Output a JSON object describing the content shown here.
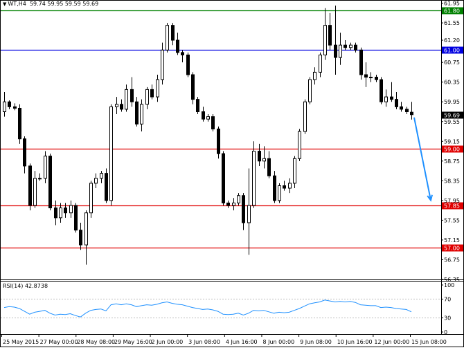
{
  "header": {
    "symbol": "WT,H4",
    "ohlc": "59.74 59.95 59.59 59.69"
  },
  "colors": {
    "bull_candle": "#ffffff",
    "bear_candle": "#000000",
    "candle_outline": "#000000",
    "support_line": "#e00000",
    "resistance_green": "#008000",
    "resistance_blue": "#0000e0",
    "rsi_line": "#1e90ff",
    "projection_arrow": "#1e90ff",
    "price_label_bg": "#000000",
    "grid": "#c0c0c0"
  },
  "chart_data": {
    "type": "candlestick",
    "title": "",
    "price_axis": {
      "ylim": [
        56.35,
        62.0
      ],
      "ticks": [
        61.95,
        61.55,
        61.2,
        60.75,
        60.35,
        59.95,
        59.55,
        59.15,
        58.75,
        58.35,
        57.95,
        57.55,
        57.15,
        56.75,
        56.35
      ]
    },
    "time_axis_labels": [
      "25 May 2015",
      "27 May 00:00",
      "28 May 08:00",
      "29 May 16:00",
      "2 Jun 00:00",
      "3 Jun 08:00",
      "4 Jun 16:00",
      "8 Jun 00:00",
      "9 Jun 08:00",
      "10 Jun 16:00",
      "12 Jun 00:00",
      "15 Jun 08:00"
    ],
    "horizontal_levels": [
      {
        "price": 61.8,
        "label": "61.80",
        "color": "#008000"
      },
      {
        "price": 61.0,
        "label": "61.00",
        "color": "#0000e0"
      },
      {
        "price": 59.0,
        "label": "59.00",
        "color": "#e00000"
      },
      {
        "price": 57.85,
        "label": "57.85",
        "color": "#e00000"
      },
      {
        "price": 57.0,
        "label": "57.00",
        "color": "#e00000"
      }
    ],
    "current_price": {
      "price": 59.69,
      "label": "59.69"
    },
    "candles": [
      [
        59.75,
        60.15,
        59.65,
        59.95
      ],
      [
        59.95,
        59.98,
        59.8,
        59.85
      ],
      [
        59.85,
        59.92,
        59.78,
        59.82
      ],
      [
        59.82,
        59.9,
        59.1,
        59.2
      ],
      [
        59.2,
        59.25,
        58.5,
        58.65
      ],
      [
        58.65,
        58.7,
        57.75,
        57.85
      ],
      [
        57.85,
        58.55,
        57.8,
        58.4
      ],
      [
        58.4,
        58.5,
        58.35,
        58.4
      ],
      [
        58.4,
        58.95,
        58.3,
        58.85
      ],
      [
        58.85,
        58.9,
        57.75,
        57.8
      ],
      [
        57.8,
        57.95,
        57.45,
        57.6
      ],
      [
        57.6,
        57.9,
        57.5,
        57.8
      ],
      [
        57.8,
        57.9,
        57.6,
        57.7
      ],
      [
        57.7,
        57.95,
        57.6,
        57.85
      ],
      [
        57.85,
        57.9,
        57.3,
        57.35
      ],
      [
        57.35,
        57.5,
        56.95,
        57.05
      ],
      [
        57.05,
        57.75,
        56.65,
        57.7
      ],
      [
        57.7,
        58.35,
        57.6,
        58.3
      ],
      [
        58.3,
        58.5,
        58.2,
        58.4
      ],
      [
        58.4,
        58.55,
        58.3,
        58.5
      ],
      [
        58.5,
        58.6,
        57.9,
        57.95
      ],
      [
        57.95,
        59.9,
        57.85,
        59.85
      ],
      [
        59.85,
        60.05,
        59.7,
        59.9
      ],
      [
        59.9,
        60.0,
        59.75,
        59.8
      ],
      [
        59.8,
        60.3,
        59.75,
        60.2
      ],
      [
        60.2,
        60.45,
        59.85,
        59.95
      ],
      [
        59.95,
        60.05,
        59.45,
        59.5
      ],
      [
        59.5,
        60.0,
        59.35,
        59.9
      ],
      [
        59.9,
        60.25,
        59.8,
        60.2
      ],
      [
        60.2,
        60.3,
        60.0,
        60.05
      ],
      [
        60.05,
        60.5,
        59.95,
        60.4
      ],
      [
        60.4,
        61.15,
        60.3,
        61.0
      ],
      [
        61.0,
        61.55,
        60.95,
        61.5
      ],
      [
        61.5,
        61.55,
        61.1,
        61.2
      ],
      [
        61.2,
        61.35,
        60.9,
        60.95
      ],
      [
        60.95,
        61.0,
        60.75,
        60.9
      ],
      [
        60.9,
        60.95,
        60.45,
        60.5
      ],
      [
        60.5,
        60.55,
        59.9,
        60.0
      ],
      [
        60.0,
        60.05,
        59.7,
        59.75
      ],
      [
        59.75,
        59.85,
        59.55,
        59.6
      ],
      [
        59.6,
        59.7,
        59.55,
        59.65
      ],
      [
        59.65,
        59.7,
        59.35,
        59.4
      ],
      [
        59.4,
        59.45,
        58.8,
        58.9
      ],
      [
        58.9,
        58.95,
        57.85,
        57.9
      ],
      [
        57.9,
        57.95,
        57.8,
        57.85
      ],
      [
        57.85,
        58.0,
        57.75,
        57.9
      ],
      [
        57.9,
        58.1,
        57.85,
        58.05
      ],
      [
        58.05,
        58.1,
        57.35,
        57.5
      ],
      [
        57.5,
        58.6,
        56.85,
        57.85
      ],
      [
        57.85,
        59.15,
        57.8,
        58.95
      ],
      [
        58.95,
        59.1,
        58.65,
        58.75
      ],
      [
        58.75,
        59.05,
        58.6,
        58.8
      ],
      [
        58.8,
        58.95,
        58.4,
        58.45
      ],
      [
        58.45,
        58.55,
        57.9,
        57.95
      ],
      [
        57.95,
        58.3,
        57.9,
        58.25
      ],
      [
        58.25,
        58.35,
        58.15,
        58.2
      ],
      [
        58.2,
        58.4,
        58.1,
        58.3
      ],
      [
        58.3,
        58.85,
        58.2,
        58.8
      ],
      [
        58.8,
        59.4,
        58.75,
        59.35
      ],
      [
        59.35,
        60.0,
        59.3,
        59.95
      ],
      [
        59.95,
        60.45,
        59.9,
        60.4
      ],
      [
        60.4,
        60.65,
        60.3,
        60.55
      ],
      [
        60.55,
        60.95,
        60.45,
        60.9
      ],
      [
        60.9,
        61.85,
        60.8,
        61.5
      ],
      [
        61.5,
        61.75,
        61.0,
        61.1
      ],
      [
        61.1,
        61.9,
        60.5,
        60.85
      ],
      [
        60.85,
        61.35,
        60.7,
        61.1
      ],
      [
        61.1,
        61.2,
        61.0,
        61.05
      ],
      [
        61.05,
        61.15,
        61.0,
        61.1
      ],
      [
        61.1,
        61.15,
        60.95,
        61.0
      ],
      [
        61.0,
        61.05,
        60.4,
        60.5
      ],
      [
        60.5,
        60.75,
        60.25,
        60.45
      ],
      [
        60.45,
        60.55,
        60.35,
        60.45
      ],
      [
        60.45,
        60.5,
        60.35,
        60.4
      ],
      [
        60.4,
        60.45,
        59.9,
        59.95
      ],
      [
        59.95,
        60.2,
        59.85,
        60.05
      ],
      [
        60.05,
        60.35,
        59.95,
        60.0
      ],
      [
        60.0,
        60.15,
        59.8,
        59.85
      ],
      [
        59.85,
        59.95,
        59.75,
        59.8
      ],
      [
        59.8,
        59.85,
        59.7,
        59.75
      ],
      [
        59.74,
        59.95,
        59.59,
        59.69
      ]
    ],
    "projection": {
      "from_price": 59.69,
      "to_price": 57.9
    },
    "rsi": {
      "label": "RSI(14) 42.8738",
      "ylim": [
        0,
        100
      ],
      "ticks": [
        100,
        70,
        30,
        0
      ],
      "values": [
        52,
        54,
        53,
        50,
        44,
        38,
        42,
        44,
        46,
        40,
        36,
        38,
        37,
        39,
        35,
        32,
        40,
        46,
        48,
        49,
        45,
        58,
        60,
        58,
        60,
        58,
        54,
        56,
        58,
        57,
        59,
        62,
        64,
        61,
        59,
        58,
        55,
        52,
        50,
        48,
        49,
        47,
        44,
        38,
        37,
        38,
        40,
        36,
        40,
        46,
        45,
        46,
        43,
        40,
        42,
        41,
        42,
        46,
        50,
        55,
        60,
        62,
        64,
        68,
        66,
        64,
        65,
        64,
        65,
        63,
        58,
        57,
        56,
        56,
        52,
        53,
        52,
        50,
        49,
        48,
        43
      ]
    }
  }
}
